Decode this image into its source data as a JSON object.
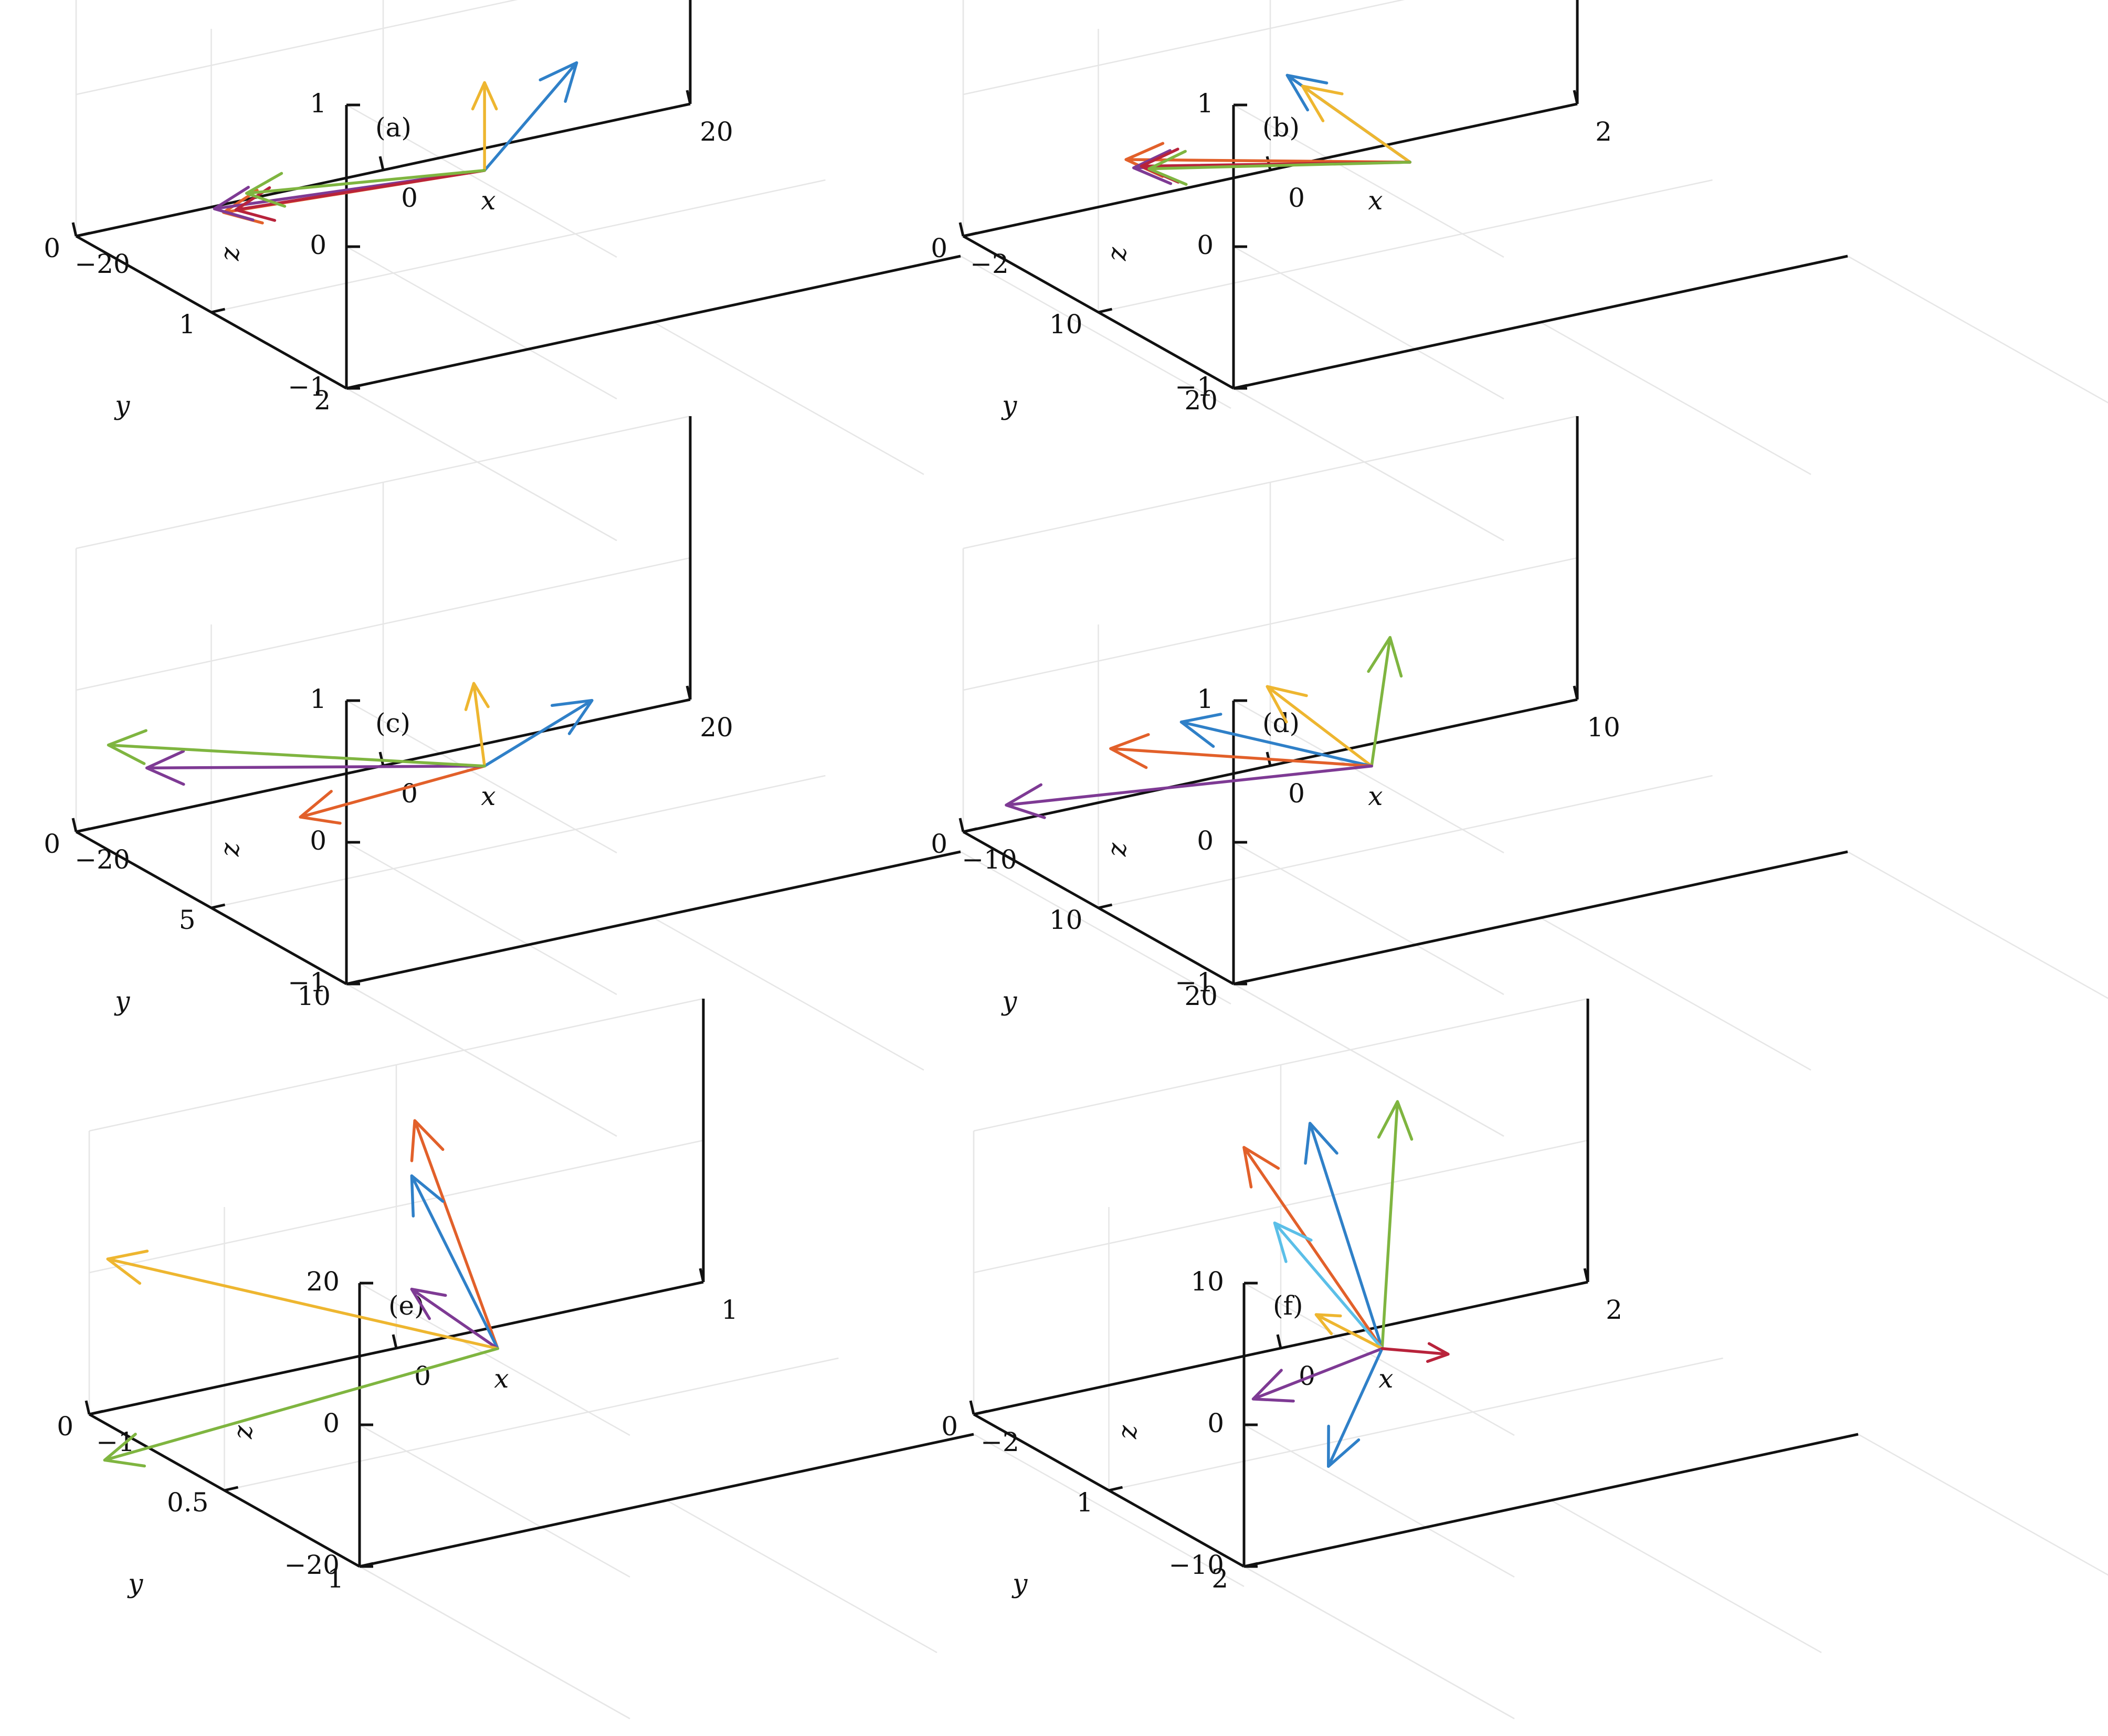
{
  "colors": {
    "blue": "#2f80c8",
    "orange": "#e2602a",
    "yellow": "#eeb630",
    "purple": "#7e3a94",
    "green": "#7fb540",
    "cyan": "#5bbfe8",
    "red": "#b8233b"
  },
  "chart_data": [
    {
      "type": "quiver3d",
      "panel_label": "(a)",
      "xlabel": "x",
      "ylabel": "y",
      "zlabel": "z",
      "xlim": [
        -20,
        20
      ],
      "ylim": [
        0,
        2
      ],
      "zlim": [
        -1,
        1
      ],
      "xticks": [
        -20,
        0,
        20
      ],
      "xtick_labels": [
        "−20",
        "0",
        "20"
      ],
      "yticks": [
        0,
        1,
        2
      ],
      "ytick_labels": [
        "0",
        "1",
        "2"
      ],
      "zticks": [
        -1,
        0,
        1
      ],
      "ztick_labels": [
        "−1",
        "0",
        "1"
      ],
      "origin": [
        0,
        0.75,
        -0.6
      ],
      "vectors": [
        {
          "color": "blue",
          "d": [
            6,
            0,
            0.62
          ]
        },
        {
          "color": "yellow",
          "d": [
            0,
            0,
            0.62
          ]
        },
        {
          "color": "orange",
          "d": [
            -17,
            0,
            0.1
          ]
        },
        {
          "color": "purple",
          "d": [
            -17.6,
            0,
            0.14
          ]
        },
        {
          "color": "red",
          "d": [
            -16.2,
            0,
            0.1
          ]
        },
        {
          "color": "green",
          "d": [
            -15.5,
            0,
            0.2
          ]
        }
      ]
    },
    {
      "type": "quiver3d",
      "panel_label": "(b)",
      "xlabel": "x",
      "ylabel": "y",
      "zlabel": "z",
      "xlim": [
        -2,
        2
      ],
      "ylim": [
        0,
        20
      ],
      "zlim": [
        -1,
        1
      ],
      "xticks": [
        -2,
        0,
        2
      ],
      "xtick_labels": [
        "−2",
        "0",
        "2"
      ],
      "yticks": [
        0,
        10,
        20
      ],
      "ytick_labels": [
        "0",
        "10",
        "20"
      ],
      "zticks": [
        -1,
        0,
        1
      ],
      "ztick_labels": [
        "−1",
        "0",
        "1"
      ],
      "origin": [
        0.25,
        7.5,
        -0.6
      ],
      "vectors": [
        {
          "color": "blue",
          "d": [
            -0.8,
            0,
            0.8
          ]
        },
        {
          "color": "yellow",
          "d": [
            -0.7,
            0,
            0.7
          ]
        },
        {
          "color": "orange",
          "d": [
            -1.85,
            0,
            0.45
          ]
        },
        {
          "color": "purple",
          "d": [
            -1.8,
            0,
            0.38
          ]
        },
        {
          "color": "red",
          "d": [
            -1.75,
            0,
            0.38
          ]
        },
        {
          "color": "green",
          "d": [
            -1.7,
            0,
            0.35
          ]
        }
      ]
    },
    {
      "type": "quiver3d",
      "panel_label": "(c)",
      "xlabel": "x",
      "ylabel": "y",
      "zlabel": "z",
      "xlim": [
        -20,
        20
      ],
      "ylim": [
        0,
        10
      ],
      "zlim": [
        -1,
        1
      ],
      "xticks": [
        -20,
        0,
        20
      ],
      "xtick_labels": [
        "−20",
        "0",
        "20"
      ],
      "yticks": [
        0,
        5,
        10
      ],
      "ytick_labels": [
        "0",
        "5",
        "10"
      ],
      "zticks": [
        -1,
        0,
        1
      ],
      "ztick_labels": [
        "−1",
        "0",
        "1"
      ],
      "origin": [
        0,
        3.75,
        -0.6
      ],
      "vectors": [
        {
          "color": "blue",
          "d": [
            7,
            0,
            0.3
          ]
        },
        {
          "color": "yellow",
          "d": [
            -0.7,
            0,
            0.6
          ]
        },
        {
          "color": "orange",
          "d": [
            -12,
            0,
            -0.08
          ]
        },
        {
          "color": "purple",
          "d": [
            -22,
            0,
            0.5
          ]
        },
        {
          "color": "green",
          "d": [
            -24.5,
            0,
            0.72
          ]
        }
      ]
    },
    {
      "type": "quiver3d",
      "panel_label": "(d)",
      "xlabel": "x",
      "ylabel": "y",
      "zlabel": "z",
      "xlim": [
        -10,
        10
      ],
      "ylim": [
        0,
        20
      ],
      "zlim": [
        -1,
        1
      ],
      "xticks": [
        -10,
        0,
        10
      ],
      "xtick_labels": [
        "−10",
        "0",
        "10"
      ],
      "yticks": [
        0,
        10,
        20
      ],
      "ytick_labels": [
        "0",
        "10",
        "20"
      ],
      "zticks": [
        -1,
        0,
        1
      ],
      "ztick_labels": [
        "−1",
        "0",
        "1"
      ],
      "origin": [
        0,
        7.5,
        -0.6
      ],
      "vectors": [
        {
          "color": "green",
          "d": [
            0.6,
            0,
            0.88
          ]
        },
        {
          "color": "yellow",
          "d": [
            -3.4,
            0,
            0.72
          ]
        },
        {
          "color": "blue",
          "d": [
            -6.2,
            0,
            0.6
          ]
        },
        {
          "color": "orange",
          "d": [
            -8.5,
            0,
            0.52
          ]
        },
        {
          "color": "purple",
          "d": [
            -11.9,
            0,
            0.28
          ]
        }
      ]
    },
    {
      "type": "quiver3d",
      "panel_label": "(e)",
      "xlabel": "x",
      "ylabel": "y",
      "zlabel": "z",
      "xlim": [
        -1,
        1
      ],
      "ylim": [
        0,
        1
      ],
      "zlim": [
        -20,
        20
      ],
      "xticks": [
        -1,
        0,
        1
      ],
      "xtick_labels": [
        "−1",
        "0",
        "1"
      ],
      "yticks": [
        0,
        0.5,
        1
      ],
      "ytick_labels": [
        "0",
        "0.5",
        "1"
      ],
      "zticks": [
        -20,
        0,
        20
      ],
      "ztick_labels": [
        "−20",
        "0",
        "20"
      ],
      "origin": [
        0,
        0.375,
        -12
      ],
      "vectors": [
        {
          "color": "orange",
          "d": [
            -0.27,
            0,
            34.7
          ]
        },
        {
          "color": "blue",
          "d": [
            -0.28,
            0,
            27
          ]
        },
        {
          "color": "purple",
          "d": [
            -0.28,
            0,
            11
          ]
        },
        {
          "color": "yellow",
          "d": [
            -1.27,
            0,
            24.5
          ]
        },
        {
          "color": "green",
          "d": [
            -1.28,
            0,
            -3.8
          ]
        }
      ]
    },
    {
      "type": "quiver3d",
      "panel_label": "(f)",
      "xlabel": "x",
      "ylabel": "y",
      "zlabel": "z",
      "xlim": [
        -2,
        2
      ],
      "ylim": [
        0,
        2
      ],
      "zlim": [
        -10,
        10
      ],
      "xticks": [
        -2,
        0,
        2
      ],
      "xtick_labels": [
        "−2",
        "0",
        "2"
      ],
      "yticks": [
        0,
        1,
        2
      ],
      "ytick_labels": [
        "0",
        "1",
        "2"
      ],
      "zticks": [
        -10,
        0,
        10
      ],
      "ztick_labels": [
        "−10",
        "0",
        "10"
      ],
      "origin": [
        0,
        0.75,
        -6
      ],
      "vectors": [
        {
          "color": "blue",
          "d": [
            -0.47,
            0,
            17
          ]
        },
        {
          "color": "green",
          "d": [
            0.1,
            0,
            17.2
          ]
        },
        {
          "color": "orange",
          "d": [
            -0.9,
            0,
            16.3
          ]
        },
        {
          "color": "cyan",
          "d": [
            -0.7,
            0,
            10.5
          ]
        },
        {
          "color": "yellow",
          "d": [
            -0.43,
            0,
            3.4
          ]
        },
        {
          "color": "purple",
          "d": [
            -0.84,
            0,
            -1.6
          ]
        },
        {
          "color": "blue",
          "d": [
            -0.35,
            0,
            -7.5
          ]
        },
        {
          "color": "red",
          "d": [
            0.43,
            0,
            -1.4
          ]
        }
      ]
    }
  ]
}
